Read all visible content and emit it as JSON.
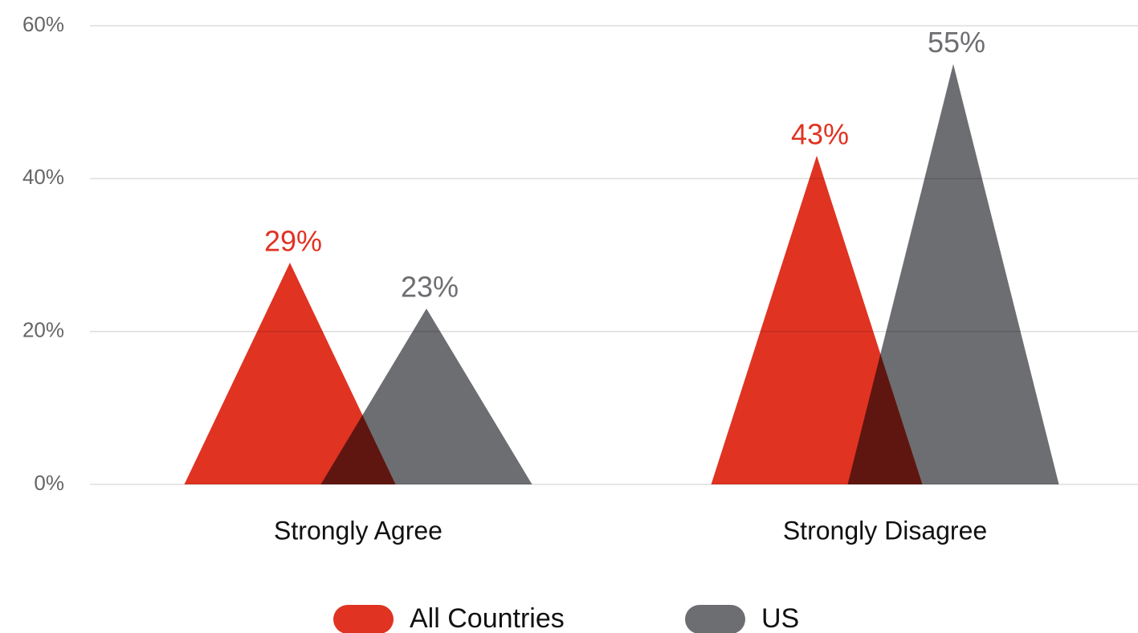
{
  "chart_data": {
    "type": "triangle-bar",
    "categories": [
      "Strongly Agree",
      "Strongly Disagree"
    ],
    "series": [
      {
        "name": "All Countries",
        "color": "#e03322",
        "values": [
          29,
          43
        ],
        "value_labels": [
          "29%",
          "43%"
        ]
      },
      {
        "name": "US",
        "color": "#6d6e71",
        "values": [
          23,
          55
        ],
        "value_labels": [
          "23%",
          "55%"
        ]
      }
    ],
    "ylim": [
      0,
      60
    ],
    "yticks": [
      {
        "value": 0,
        "label": "0%"
      },
      {
        "value": 20,
        "label": "20%"
      },
      {
        "value": 40,
        "label": "40%"
      },
      {
        "value": 60,
        "label": "60%"
      }
    ],
    "grid": true,
    "legend": "bottom"
  }
}
